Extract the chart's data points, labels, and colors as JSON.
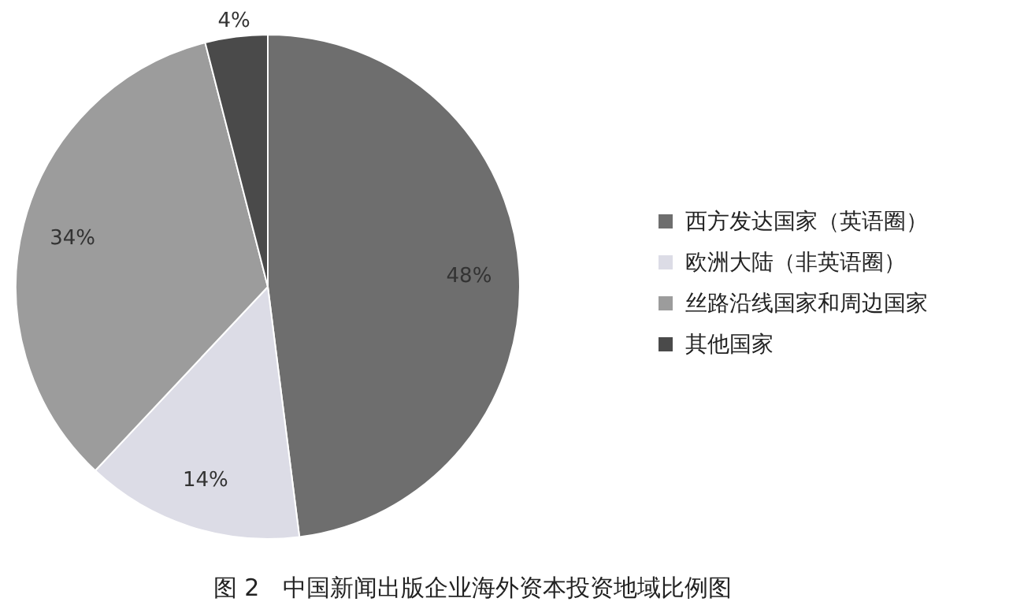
{
  "chart_data": {
    "type": "pie",
    "title": "图 2　中国新闻出版企业海外资本投资地域比例图",
    "categories": [
      "西方发达国家（英语圈）",
      "欧洲大陆（非英语圈）",
      "丝路沿线国家和周边国家",
      "其他国家"
    ],
    "values": [
      48,
      14,
      34,
      4
    ],
    "colors": [
      "#6e6e6e",
      "#dcdce6",
      "#9c9c9c",
      "#4a4a4a"
    ],
    "value_labels": [
      "48%",
      "14%",
      "34%",
      "4%"
    ],
    "legend": "right"
  }
}
